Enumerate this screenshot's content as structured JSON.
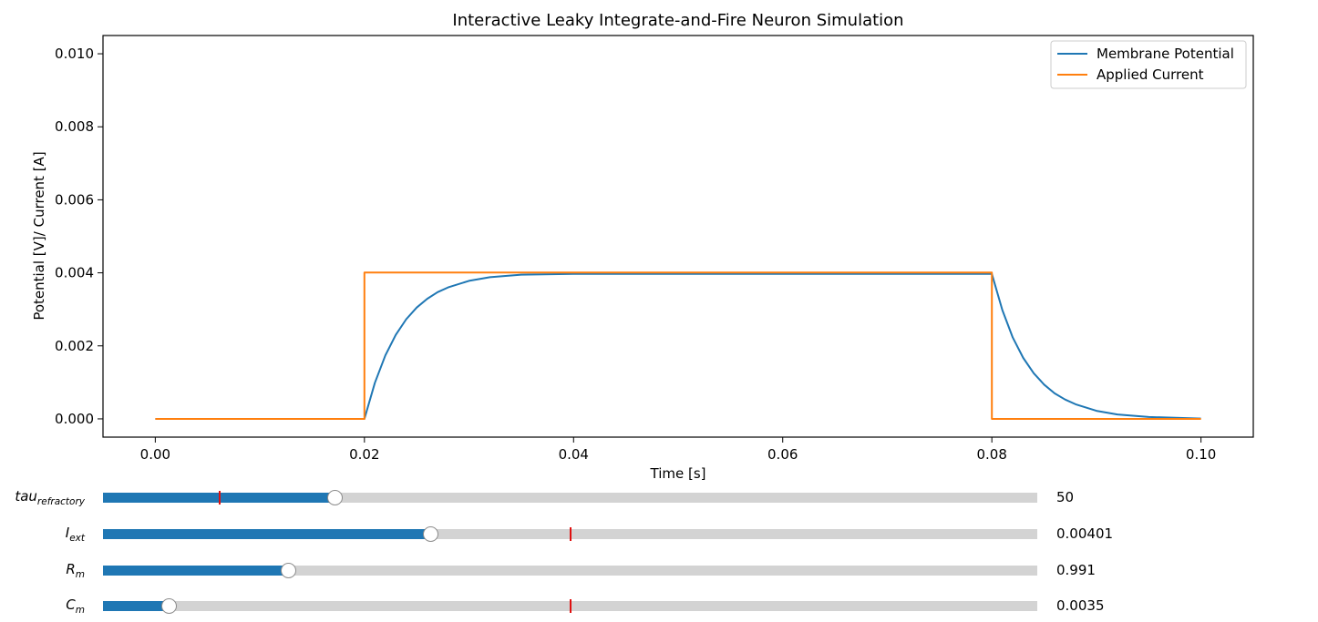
{
  "chart_data": {
    "type": "line",
    "title": "Interactive Leaky Integrate-and-Fire Neuron Simulation",
    "xlabel": "Time [s]",
    "ylabel": "Potential [V]/ Current [A]",
    "xlim": [
      -0.005,
      0.105
    ],
    "ylim": [
      -0.0005,
      0.0105
    ],
    "xticks": [
      "0.00",
      "0.02",
      "0.04",
      "0.06",
      "0.08",
      "0.10"
    ],
    "yticks": [
      "0.000",
      "0.002",
      "0.004",
      "0.006",
      "0.008",
      "0.010"
    ],
    "grid": false,
    "legend_position": "top-right",
    "series": [
      {
        "name": "Membrane Potential",
        "color": "#1f77b4",
        "x": [
          0.0,
          0.02,
          0.021,
          0.022,
          0.023,
          0.024,
          0.025,
          0.026,
          0.027,
          0.028,
          0.03,
          0.032,
          0.035,
          0.04,
          0.05,
          0.06,
          0.07,
          0.08,
          0.081,
          0.082,
          0.083,
          0.084,
          0.085,
          0.086,
          0.087,
          0.088,
          0.09,
          0.092,
          0.095,
          0.1
        ],
        "y": [
          0.0,
          0.0,
          0.00099,
          0.00174,
          0.0023,
          0.00273,
          0.00305,
          0.00329,
          0.00347,
          0.0036,
          0.00378,
          0.00388,
          0.00395,
          0.00397,
          0.00397,
          0.00397,
          0.00397,
          0.00397,
          0.00298,
          0.00223,
          0.00167,
          0.00125,
          0.00094,
          0.0007,
          0.00053,
          0.0004,
          0.00022,
          0.00012,
          5e-05,
          1e-05
        ]
      },
      {
        "name": "Applied Current",
        "color": "#ff7f0e",
        "x": [
          0.0,
          0.02,
          0.02,
          0.08,
          0.08,
          0.1
        ],
        "y": [
          0.0,
          0.0,
          0.00401,
          0.00401,
          0.0,
          0.0
        ]
      }
    ]
  },
  "sliders": [
    {
      "label_main": "tau",
      "label_sub": "refractory",
      "value_text": "50",
      "fill_fraction": 0.248,
      "mark_fraction": 0.125
    },
    {
      "label_main": "I",
      "label_sub": "ext",
      "value_text": "0.00401",
      "fill_fraction": 0.35,
      "mark_fraction": 0.5
    },
    {
      "label_main": "R",
      "label_sub": "m",
      "value_text": "0.991",
      "fill_fraction": 0.198,
      "mark_fraction": null
    },
    {
      "label_main": "C",
      "label_sub": "m",
      "value_text": "0.0035",
      "fill_fraction": 0.07,
      "mark_fraction": 0.5
    }
  ]
}
